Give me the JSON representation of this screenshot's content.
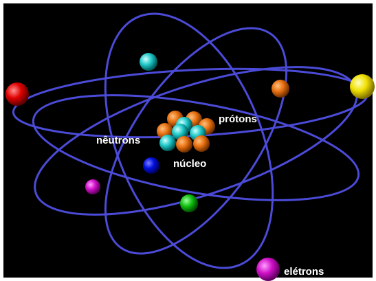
{
  "labels": {
    "protons": "prótons",
    "neutrons": "nêutrons",
    "nucleus": "núcleo",
    "electrons": "elétrons"
  }
}
